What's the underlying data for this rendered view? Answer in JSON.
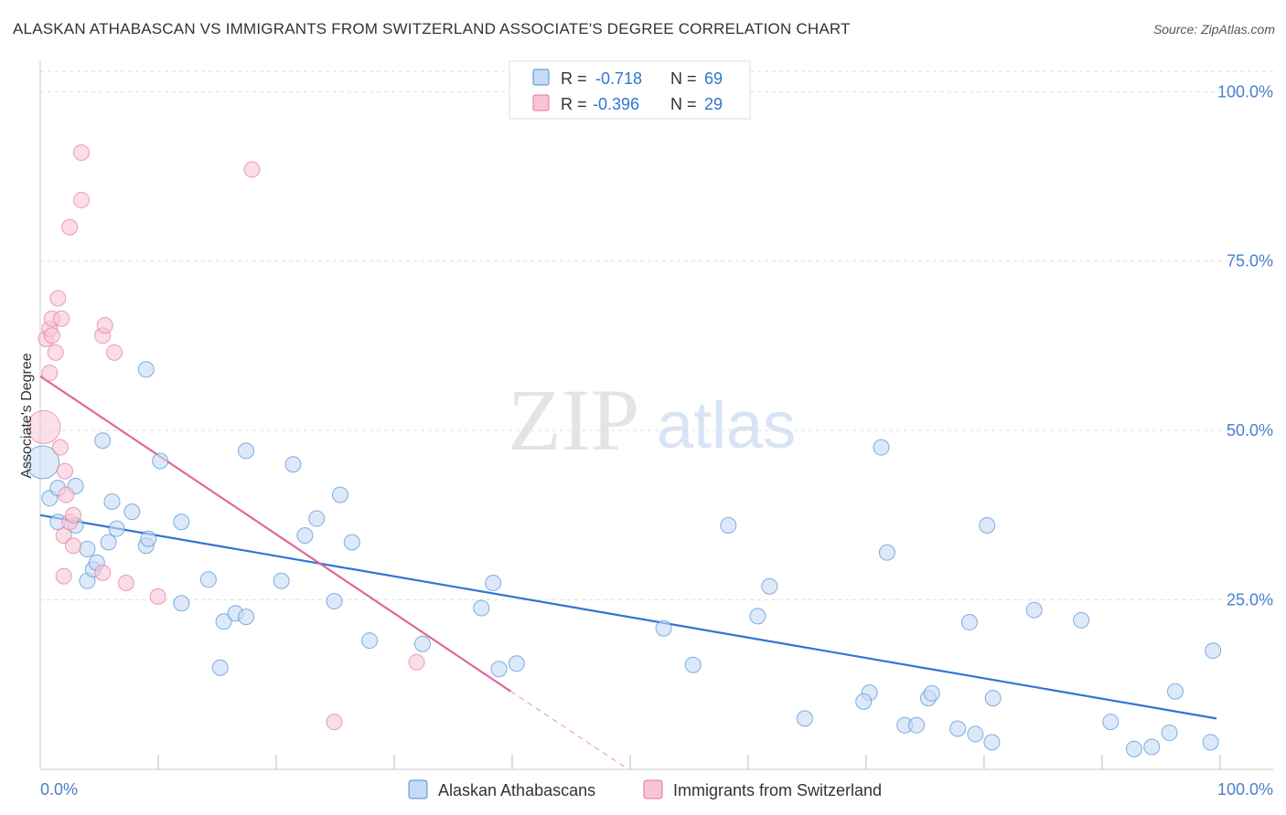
{
  "title": "ALASKAN ATHABASCAN VS IMMIGRANTS FROM SWITZERLAND ASSOCIATE'S DEGREE CORRELATION CHART",
  "source": "Source: ZipAtlas.com",
  "watermark": {
    "zip": "ZIP",
    "atlas": "atlas"
  },
  "colors": {
    "blue": "#4a90d9",
    "blue_fill": "#c6daf5",
    "blue_line": "#2f76d2",
    "pink": "#e8739c",
    "pink_fill": "#f7c6d6",
    "pink_line": "#e0679a",
    "tick_text": "#4a7fcf",
    "grid": "#dddddd"
  },
  "legend_top": {
    "rows": [
      {
        "r_label": "R = ",
        "r_value": "-0.718",
        "n_label": "N = ",
        "n_value": "69",
        "series": "blue"
      },
      {
        "r_label": "R = ",
        "r_value": "-0.396",
        "n_label": "N = ",
        "n_value": "29",
        "series": "pink"
      }
    ]
  },
  "legend_bottom": [
    {
      "label": "Alaskan Athabascans",
      "series": "blue"
    },
    {
      "label": "Immigrants from Switzerland",
      "series": "pink"
    }
  ],
  "chart_data": {
    "type": "scatter",
    "title": "ALASKAN ATHABASCAN VS IMMIGRANTS FROM SWITZERLAND ASSOCIATE'S DEGREE CORRELATION CHART",
    "xlabel": "",
    "ylabel": "Associate's Degree",
    "xlim": [
      0,
      100
    ],
    "ylim": [
      0,
      103
    ],
    "x_tick_labels": [
      "0.0%",
      "100.0%"
    ],
    "y_ticks": [
      25,
      50,
      75,
      100
    ],
    "y_tick_labels": [
      "25.0%",
      "50.0%",
      "75.0%",
      "100.0%"
    ],
    "series": [
      {
        "name": "Alaskan Athabascans",
        "color": "blue",
        "trend": {
          "x": [
            0,
            100
          ],
          "y": [
            37.5,
            7.5
          ]
        },
        "points": [
          [
            0.2,
            45.3
          ],
          [
            0.8,
            40.0
          ],
          [
            1.5,
            41.5
          ],
          [
            1.5,
            36.5
          ],
          [
            3.0,
            41.8
          ],
          [
            3.0,
            36.0
          ],
          [
            4.0,
            32.5
          ],
          [
            4.0,
            27.8
          ],
          [
            4.5,
            29.5
          ],
          [
            4.8,
            30.5
          ],
          [
            5.3,
            48.5
          ],
          [
            5.8,
            33.5
          ],
          [
            6.1,
            39.5
          ],
          [
            6.5,
            35.5
          ],
          [
            7.8,
            38.0
          ],
          [
            9.0,
            59.0
          ],
          [
            9.0,
            33.0
          ],
          [
            9.2,
            34.0
          ],
          [
            10.2,
            45.5
          ],
          [
            12.0,
            36.5
          ],
          [
            12.0,
            24.5
          ],
          [
            14.3,
            28.0
          ],
          [
            15.3,
            15.0
          ],
          [
            15.6,
            21.8
          ],
          [
            16.6,
            23.0
          ],
          [
            17.5,
            22.5
          ],
          [
            17.5,
            47.0
          ],
          [
            20.5,
            27.8
          ],
          [
            21.5,
            45.0
          ],
          [
            22.5,
            34.5
          ],
          [
            23.5,
            37.0
          ],
          [
            25.0,
            24.8
          ],
          [
            25.5,
            40.5
          ],
          [
            26.5,
            33.5
          ],
          [
            28.0,
            19.0
          ],
          [
            32.5,
            18.5
          ],
          [
            37.5,
            23.8
          ],
          [
            38.5,
            27.5
          ],
          [
            39.0,
            14.8
          ],
          [
            40.5,
            15.6
          ],
          [
            53.0,
            20.8
          ],
          [
            55.5,
            15.4
          ],
          [
            58.5,
            36.0
          ],
          [
            61.0,
            22.6
          ],
          [
            62.0,
            27.0
          ],
          [
            65.0,
            7.5
          ],
          [
            70.5,
            11.3
          ],
          [
            70.0,
            10.0
          ],
          [
            71.5,
            47.5
          ],
          [
            72.0,
            32.0
          ],
          [
            73.5,
            6.5
          ],
          [
            74.5,
            6.5
          ],
          [
            75.5,
            10.5
          ],
          [
            75.8,
            11.2
          ],
          [
            78.0,
            6.0
          ],
          [
            79.0,
            21.7
          ],
          [
            79.5,
            5.2
          ],
          [
            80.5,
            36.0
          ],
          [
            80.9,
            4.0
          ],
          [
            81.0,
            10.5
          ],
          [
            84.5,
            23.5
          ],
          [
            88.5,
            22.0
          ],
          [
            91.0,
            7.0
          ],
          [
            93.0,
            3.0
          ],
          [
            94.5,
            3.3
          ],
          [
            96.0,
            5.4
          ],
          [
            96.5,
            11.5
          ],
          [
            99.5,
            4.0
          ],
          [
            99.7,
            17.5
          ]
        ]
      },
      {
        "name": "Immigrants from Switzerland",
        "color": "pink",
        "trend": {
          "x": [
            0,
            40
          ],
          "y": [
            58.0,
            11.5
          ]
        },
        "trend_dashed": {
          "x": [
            40,
            50
          ],
          "y": [
            11.5,
            0
          ]
        },
        "points": [
          [
            0.3,
            50.5
          ],
          [
            0.5,
            63.5
          ],
          [
            0.8,
            58.5
          ],
          [
            0.8,
            65.0
          ],
          [
            1.0,
            66.5
          ],
          [
            1.0,
            64.0
          ],
          [
            1.3,
            61.5
          ],
          [
            1.5,
            69.5
          ],
          [
            1.7,
            47.5
          ],
          [
            1.8,
            66.5
          ],
          [
            2.0,
            34.5
          ],
          [
            2.0,
            28.5
          ],
          [
            2.1,
            44.0
          ],
          [
            2.2,
            40.5
          ],
          [
            2.5,
            36.5
          ],
          [
            2.8,
            37.5
          ],
          [
            2.8,
            33.0
          ],
          [
            3.5,
            91.0
          ],
          [
            3.5,
            84.0
          ],
          [
            2.5,
            80.0
          ],
          [
            5.3,
            64.0
          ],
          [
            5.3,
            29.0
          ],
          [
            5.5,
            65.5
          ],
          [
            6.3,
            61.5
          ],
          [
            7.3,
            27.5
          ],
          [
            10.0,
            25.5
          ],
          [
            18.0,
            88.5
          ],
          [
            25.0,
            7.0
          ],
          [
            32.0,
            15.8
          ]
        ]
      }
    ]
  }
}
